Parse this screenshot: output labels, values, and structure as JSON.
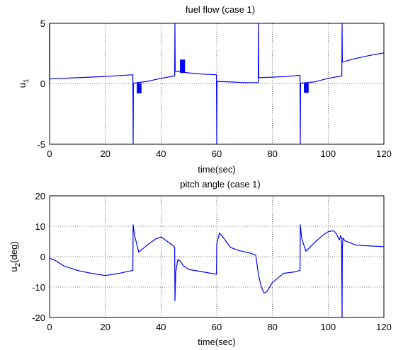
{
  "chart_data": [
    {
      "type": "line",
      "title": "fuel flow (case 1)",
      "xlabel": "time(sec)",
      "ylabel_main": "u",
      "ylabel_sub": "1",
      "xlim": [
        0,
        120
      ],
      "ylim": [
        -5,
        5
      ],
      "xticks": [
        0,
        20,
        40,
        60,
        80,
        100,
        120
      ],
      "yticks": [
        -5,
        0,
        5
      ],
      "grid": true,
      "color": "#0000ff",
      "series": [
        {
          "x": [
            0,
            0,
            0.05,
            0.05,
            2,
            10,
            20,
            29.9,
            29.9,
            30,
            30,
            30.1,
            30.1,
            35,
            40,
            44.9,
            44.9,
            45,
            45,
            45.1,
            45.1,
            50,
            55,
            59.9,
            59.9,
            60,
            60,
            60.1,
            60.1,
            65,
            70,
            74.9,
            74.9,
            75,
            75,
            75.1,
            75.1,
            80,
            85,
            89.9,
            89.9,
            90,
            90,
            90.1,
            90.1,
            95,
            100,
            104.9,
            104.9,
            105,
            105,
            105.1,
            105.1,
            110,
            115,
            120
          ],
          "y": [
            0,
            5,
            5,
            0.4,
            0.42,
            0.5,
            0.6,
            0.75,
            0.75,
            -5,
            -5,
            0.05,
            0.05,
            0.2,
            0.45,
            0.65,
            0.65,
            5,
            5,
            1.05,
            1.05,
            0.9,
            0.8,
            0.75,
            0.75,
            -5,
            -5,
            0.2,
            0.2,
            0.15,
            0.1,
            0.1,
            0.1,
            5,
            5,
            0.5,
            0.5,
            0.55,
            0.6,
            0.7,
            0.7,
            -5,
            -5,
            0.05,
            0.05,
            0.15,
            0.45,
            0.65,
            0.65,
            5,
            5,
            1.8,
            1.8,
            2.1,
            2.35,
            2.55
          ]
        }
      ],
      "bursts": [
        {
          "x0": 31.3,
          "x1": 33.0,
          "y0": -0.8,
          "y1": 0.05
        },
        {
          "x0": 46.8,
          "x1": 48.6,
          "y0": 0.9,
          "y1": 2.0
        },
        {
          "x0": 91.3,
          "x1": 93.0,
          "y0": -0.75,
          "y1": 0.05
        }
      ]
    },
    {
      "type": "line",
      "title": "pitch angle (case 1)",
      "xlabel": "time(sec)",
      "ylabel_main": "u",
      "ylabel_sub": "2",
      "ylabel_tail": "(deg)",
      "xlim": [
        0,
        120
      ],
      "ylim": [
        -20,
        20
      ],
      "xticks": [
        0,
        20,
        40,
        60,
        80,
        100,
        120
      ],
      "yticks": [
        -20,
        -10,
        0,
        10,
        20
      ],
      "grid": true,
      "color": "#0000ff",
      "series": [
        {
          "x": [
            0,
            2,
            5,
            10,
            15,
            20,
            25,
            29.9,
            30,
            30.5,
            32,
            35,
            38,
            40,
            42,
            44.5,
            44.9,
            45,
            45.3,
            46,
            47,
            48,
            50,
            55,
            59.9,
            60,
            61,
            63,
            65,
            68,
            72,
            74,
            75,
            76,
            77,
            78,
            80,
            84,
            88,
            89.9,
            90,
            90.5,
            92,
            95,
            98,
            100,
            102,
            103,
            104,
            104.5,
            104.8,
            105,
            105.1,
            105.3,
            106,
            108,
            110,
            115,
            120
          ],
          "y": [
            -0.5,
            -1.2,
            -3,
            -4.5,
            -5.5,
            -6.2,
            -5.5,
            -4.5,
            10.5,
            7,
            1.5,
            3.8,
            5.8,
            6.5,
            5.2,
            3.5,
            3,
            -14.5,
            -5,
            -1,
            -1.5,
            -3,
            -4.2,
            -5,
            -5.8,
            4.2,
            7.8,
            5.5,
            3,
            2,
            1.2,
            0.5,
            -6,
            -10,
            -12,
            -11.5,
            -8.5,
            -5.5,
            -5,
            -4.5,
            10.5,
            6,
            1.8,
            4.5,
            7,
            8.2,
            8.5,
            7.5,
            5.5,
            7,
            6,
            -20,
            3,
            6.2,
            5.2,
            4.5,
            3.8,
            3.5,
            3.3
          ]
        }
      ]
    }
  ]
}
